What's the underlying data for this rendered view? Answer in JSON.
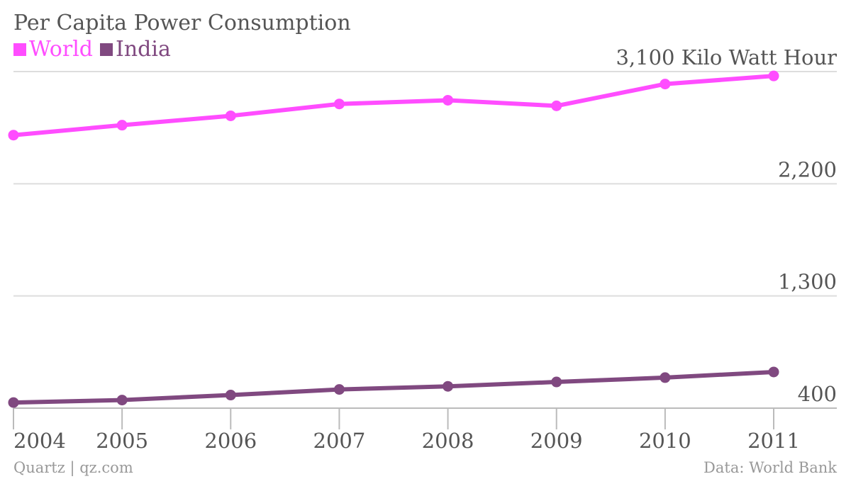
{
  "chart_data": {
    "type": "line",
    "title": "Per Capita Power Consumption",
    "x": [
      "2004",
      "2005",
      "2006",
      "2007",
      "2008",
      "2009",
      "2010",
      "2011"
    ],
    "series": [
      {
        "name": "World",
        "color": "#ff4dff",
        "values": [
          2590,
          2670,
          2745,
          2840,
          2870,
          2825,
          3000,
          3065
        ]
      },
      {
        "name": "India",
        "color": "#804980",
        "values": [
          445,
          465,
          505,
          550,
          575,
          610,
          645,
          690
        ]
      }
    ],
    "y_ticks": [
      {
        "value": 400,
        "label": "400"
      },
      {
        "value": 1300,
        "label": "1,300"
      },
      {
        "value": 2200,
        "label": "2,200"
      },
      {
        "value": 3100,
        "label": "3,100 Kilo Watt Hour"
      }
    ],
    "ylim": [
      400,
      3100
    ],
    "grid": true,
    "legend_position": "top-left"
  },
  "footer": {
    "source_left": "Quartz | qz.com",
    "source_right": "Data: World Bank"
  }
}
